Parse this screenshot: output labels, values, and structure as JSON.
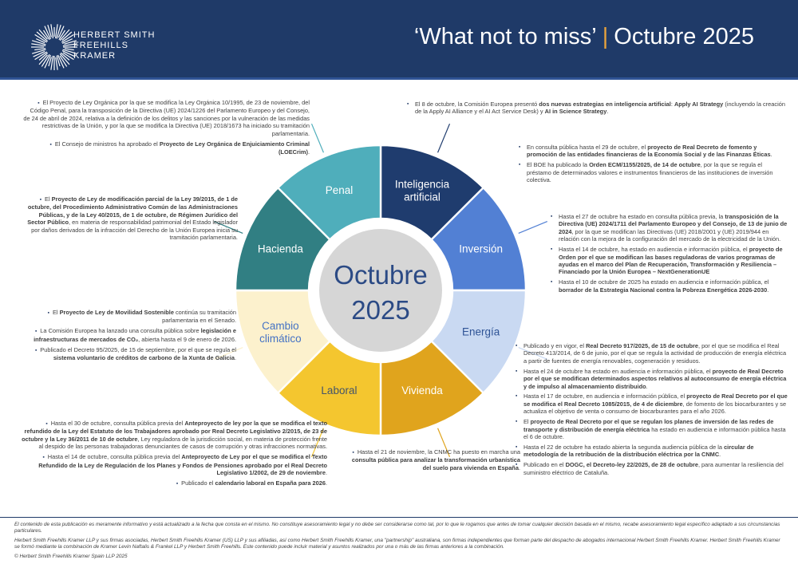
{
  "header": {
    "logo_lines": [
      "HERBERT SMITH",
      "FREEHILLS",
      "KRAMER"
    ],
    "title_left": "‘What not to miss’",
    "title_separator": "|",
    "title_right": "Octubre 2025",
    "bg_color": "#1F3A68",
    "accent_color": "#E8A33D"
  },
  "chart_data": {
    "type": "pie",
    "subtype": "donut",
    "title": "Octubre 2025",
    "center_label_lines": [
      "Octubre",
      "2025"
    ],
    "center_text_color": "#2B4A85",
    "inner_hole_color": "#FFFFFF",
    "center_circle_color": "#D6D6D6",
    "start_angle_deg": 0,
    "direction": "clockwise",
    "segments": [
      {
        "label": "Inteligencia artificial",
        "label_lines": [
          "Inteligencia",
          "artificial"
        ],
        "value": 12.5,
        "color": "#1F3C6E",
        "label_color": "#FFFFFF"
      },
      {
        "label": "Inversión",
        "label_lines": [
          "Inversión"
        ],
        "value": 12.5,
        "color": "#5280D4",
        "label_color": "#FFFFFF"
      },
      {
        "label": "Energía",
        "label_lines": [
          "Energía"
        ],
        "value": 12.5,
        "color": "#C9D9F2",
        "label_color": "#2F5496"
      },
      {
        "label": "Vivienda",
        "label_lines": [
          "Vivienda"
        ],
        "value": 12.5,
        "color": "#E0A41D",
        "label_color": "#FFFFFF"
      },
      {
        "label": "Laboral",
        "label_lines": [
          "Laboral"
        ],
        "value": 12.5,
        "color": "#F4C62F",
        "label_color": "#44546A"
      },
      {
        "label": "Cambio climático",
        "label_lines": [
          "Cambio",
          "climático"
        ],
        "value": 12.5,
        "color": "#FCF1CD",
        "label_color": "#4472C4"
      },
      {
        "label": "Hacienda",
        "label_lines": [
          "Hacienda"
        ],
        "value": 12.5,
        "color": "#317F83",
        "label_color": "#FFFFFF"
      },
      {
        "label": "Penal",
        "label_lines": [
          "Penal"
        ],
        "value": 12.5,
        "color": "#4FAEBB",
        "label_color": "#FFFFFF"
      }
    ]
  },
  "sections": {
    "penal": {
      "align": "right",
      "items": [
        "El Proyecto de Ley Orgánica por la que se modifica la Ley Orgánica 10/1995, de 23 de noviembre, del Código Penal, para la transposición de la Directiva (UE) 2024/1226 del Parlamento Europeo y del Consejo, de 24 de abril de 2024, relativa a la definición de los delitos y las sanciones por la vulneración de las medidas restrictivas de la Unión, y por la que se modifica la Directiva (UE) 2018/1673 ha iniciado su tramitación parlamentaria.",
        "El Consejo de ministros ha aprobado el **Proyecto de Ley Orgánica de Enjuiciamiento Criminal (LOECrim)**."
      ]
    },
    "hacienda": {
      "align": "right",
      "items": [
        "El **Proyecto de Ley de modificación parcial de la Ley 39/2015, de 1 de octubre, del Procedimiento Administrativo Común de las Administraciones Públicas, y de la Ley 40/2015, de 1 de octubre, de Régimen Jurídico del Sector Público**, en materia de responsabilidad patrimonial del Estado legislador por daños derivados de la infracción del Derecho de la Unión Europea inicia su tramitación parlamentaria."
      ]
    },
    "cambio_climatico": {
      "align": "right",
      "items": [
        "El **Proyecto de Ley de Movilidad Sostenible** continúa su tramitación parlamentaria en el Senado.",
        "La Comisión Europea ha lanzado una consulta pública sobre **legislación e infraestructuras de mercados de CO₂**, abierta hasta el 9 de enero de 2026.",
        "Publicado el Decreto 95/2025, de 15 de septiembre, por el que se regula el **sistema voluntario de créditos de carbono de la Xunta de Galicia**."
      ]
    },
    "laboral": {
      "align": "right",
      "items": [
        "Hasta el 30 de octubre, consulta pública previa del **Anteproyecto de ley por la que se modifica el texto refundido de la Ley del Estatuto de los Trabajadores aprobado por Real Decreto Legislativo 2/2015, de 23 de octubre y la Ley 36/2011 de 10 de octubre**, Ley reguladora de la jurisdicción social, en materia de protección frente al despido de las personas trabajadoras denunciantes de casos de corrupción y otras infracciones normativas.",
        "Hasta el 14 de octubre, consulta pública previa del **Anteproyecto de Ley por el que se modifica el Texto Refundido de la Ley de Regulación de los Planes y Fondos de Pensiones aprobado por el Real Decreto Legislativo 1/2002, de 29 de noviembre**.",
        "Publicado el **calendario laboral en España para 2026**."
      ]
    },
    "inteligencia_artificial": {
      "align": "left",
      "items": [
        "El 8 de octubre, la Comisión Europea presentó **dos nuevas estrategias en inteligencia artificial**: **Apply AI Strategy** (incluyendo la creación de la Apply AI Alliance y el AI Act Service Desk) y **AI in Science Strategy**."
      ]
    },
    "inversion": {
      "align": "left",
      "items": [
        "En consulta pública hasta el 29 de octubre, el **proyecto de Real Decreto de fomento y promoción de las entidades financieras de la Economía Social y de las Finanzas Éticas**.",
        "El BOE ha publicado la **Orden ECM/1155/2025, de 14 de octubre**, por la que se regula el préstamo de determinados valores e instrumentos financieros de las instituciones de inversión colectiva."
      ]
    },
    "energia_a": {
      "align": "left",
      "items": [
        "Hasta el 27 de octubre ha estado en consulta pública previa, la **transposición de la Directiva (UE) 2024/1711 del Parlamento Europeo y del Consejo, de 13 de junio de 2024**, por la que se modifican las Directivas (UE) 2018/2001 y (UE) 2019/944 en relación con la mejora de la configuración del mercado de la electricidad de la Unión.",
        "Hasta el 14 de octubre, ha estado en audiencia e información pública, el **proyecto de Orden por el que se modifican las bases reguladoras de varios programas de ayudas en el marco del Plan de Recuperación, Transformación y Resiliencia – Financiado por la Unión Europea – NextGenerationUE**",
        "Hasta el 10 de octubre de 2025 ha estado en audiencia e información pública, el **borrador de la Estrategia Nacional contra la Pobreza Energética 2026-2030**."
      ]
    },
    "energia_b": {
      "align": "left",
      "items": [
        "Publicado y en vigor, el **Real Decreto 917/2025, de 15 de octubre**, por el que se modifica el Real Decreto 413/2014, de 6 de junio, por el que se regula la actividad de producción de energía eléctrica a partir de fuentes de energía renovables, cogeneración y residuos.",
        "Hasta el 24 de octubre ha estado en audiencia e información pública, el **proyecto de Real Decreto por el que se modifican determinados aspectos relativos al autoconsumo de energía eléctrica y de impulso al almacenamiento distribuido**.",
        "Hasta el 17 de octubre, en audiencia e información pública, el **proyecto de Real Decreto por el que se modifica el Real Decreto 1085/2015, de 4 de diciembre**, de fomento de los biocarburantes y se actualiza el objetivo de venta o consumo de biocarburantes para el año 2026.",
        "El **proyecto de Real Decreto por el que se regulan los planes de inversión de las redes de transporte y distribución de energía eléctrica** ha estado en audiencia e información pública hasta el 6 de octubre.",
        "Hasta el 22 de octubre ha estado abierta la segunda audiencia pública de la **circular de metodología de la retribución de la distribución eléctrica por la CNMC**.",
        "Publicado en el **DOGC, el Decreto-ley 22/2025, de 28 de octubre**, para aumentar la resiliencia del suministro eléctrico de Cataluña."
      ]
    },
    "vivienda": {
      "align": "right",
      "items": [
        "Hasta el 21 de noviembre, la CNMC ha puesto en marcha una **consulta pública para analizar la transformación urbanística del suelo para vivienda en España**."
      ]
    }
  },
  "footer": {
    "disclaimer1": "El contenido de esta publicación es meramente informativo y está actualizado a la fecha que consta en el mismo. No constituye asesoramiento legal y no debe ser considerarse como tal, por lo que le rogamos que antes de tomar cualquier decisión basada en el mismo, recabe asesoramiento legal específico adaptado a sus circunstancias particulares.",
    "disclaimer2": "Herbert Smith Freehills Kramer LLP y sus firmas asociadas, Herbert Smith Freehills Kramer (US) LLP y sus afiliadas, así como Herbert Smith Freehills Kramer, una \"partnership\" australiana, son firmas independientes que forman parte del despacho de abogados internacional Herbert Smith Freehills Kramer. Herbert Smith Freehills Kramer se formó mediante la combinación de Kramer Levin Naftalis & Frankel LLP y Herbert Smith Freehills. Este contenido puede incluir material y asuntos realizados por una o más de las firmas anteriores a la combinación.",
    "copyright": "© Herbert Smith Freehills Kramer Spain LLP 2025"
  }
}
